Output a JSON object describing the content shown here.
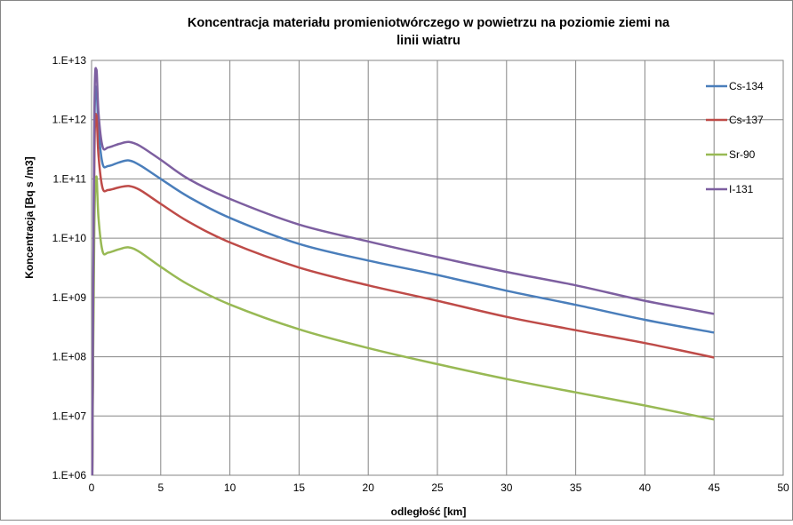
{
  "chart_data": {
    "type": "line",
    "title_line1": "Koncentracja materiału promieniotwórczego w powietrzu na poziomie ziemi na",
    "title_line2": "linii wiatru",
    "xlabel": "odległość [km]",
    "ylabel": "Koncentracja [Bq s /m3]",
    "xlim": [
      0,
      50
    ],
    "ylim": [
      1000000,
      10000000000000
    ],
    "y_scale": "log",
    "x_ticks": [
      0,
      5,
      10,
      15,
      20,
      25,
      30,
      35,
      40,
      45,
      50
    ],
    "x_tick_labels": [
      "0",
      "5",
      "10",
      "15",
      "20",
      "25",
      "30",
      "35",
      "40",
      "45",
      "50"
    ],
    "y_ticks": [
      1000000,
      10000000,
      100000000,
      1000000000,
      10000000000,
      100000000000,
      1000000000000,
      10000000000000
    ],
    "y_tick_labels": [
      "1.E+06",
      "1.E+07",
      "1.E+08",
      "1.E+09",
      "1.E+10",
      "1.E+11",
      "1.E+12",
      "1.E+13"
    ],
    "grid": true,
    "legend_position": "right",
    "series": [
      {
        "name": "Cs-134",
        "color": "#4a7ebb",
        "points": [
          [
            0.05,
            1000000
          ],
          [
            0.2,
            500000000000
          ],
          [
            0.35,
            3500000000000
          ],
          [
            0.5,
            700000000000
          ],
          [
            0.8,
            180000000000
          ],
          [
            1.2,
            165000000000
          ],
          [
            2.0,
            190000000000
          ],
          [
            2.7,
            205000000000
          ],
          [
            3.5,
            170000000000
          ],
          [
            5,
            100000000000
          ],
          [
            7,
            50000000000
          ],
          [
            10,
            22000000000
          ],
          [
            15,
            8000000000
          ],
          [
            20,
            4200000000
          ],
          [
            25,
            2400000000
          ],
          [
            30,
            1300000000
          ],
          [
            35,
            750000000
          ],
          [
            40,
            420000000
          ],
          [
            45,
            255000000
          ]
        ]
      },
      {
        "name": "Cs-137",
        "color": "#be4b48",
        "points": [
          [
            0.05,
            1000000
          ],
          [
            0.2,
            200000000000
          ],
          [
            0.35,
            1200000000000
          ],
          [
            0.5,
            250000000000
          ],
          [
            0.8,
            70000000000
          ],
          [
            1.2,
            65000000000
          ],
          [
            2.0,
            72000000000
          ],
          [
            2.7,
            76000000000
          ],
          [
            3.5,
            65000000000
          ],
          [
            5,
            38000000000
          ],
          [
            7,
            19000000000
          ],
          [
            10,
            8500000000
          ],
          [
            15,
            3200000000
          ],
          [
            20,
            1600000000
          ],
          [
            25,
            880000000
          ],
          [
            30,
            470000000
          ],
          [
            35,
            280000000
          ],
          [
            40,
            170000000
          ],
          [
            45,
            97000000
          ]
        ]
      },
      {
        "name": "Sr-90",
        "color": "#98b954",
        "points": [
          [
            0.05,
            1000000
          ],
          [
            0.2,
            15000000000
          ],
          [
            0.35,
            110000000000
          ],
          [
            0.5,
            22000000000
          ],
          [
            0.8,
            6000000000
          ],
          [
            1.2,
            5700000000
          ],
          [
            2.0,
            6500000000
          ],
          [
            2.7,
            7000000000
          ],
          [
            3.5,
            5800000000
          ],
          [
            5,
            3300000000
          ],
          [
            7,
            1650000000
          ],
          [
            10,
            760000000
          ],
          [
            15,
            290000000
          ],
          [
            20,
            140000000
          ],
          [
            25,
            75000000
          ],
          [
            30,
            42000000
          ],
          [
            35,
            25000000
          ],
          [
            40,
            15000000
          ],
          [
            45,
            8700000
          ]
        ]
      },
      {
        "name": "I-131",
        "color": "#7d5fa0",
        "points": [
          [
            0.05,
            1000000
          ],
          [
            0.2,
            1000000000000
          ],
          [
            0.35,
            7000000000000
          ],
          [
            0.5,
            1300000000000
          ],
          [
            0.8,
            350000000000
          ],
          [
            1.2,
            340000000000
          ],
          [
            2.0,
            390000000000
          ],
          [
            2.7,
            420000000000
          ],
          [
            3.5,
            360000000000
          ],
          [
            5,
            210000000000
          ],
          [
            7,
            100000000000
          ],
          [
            10,
            46000000000
          ],
          [
            15,
            17000000000
          ],
          [
            20,
            8800000000
          ],
          [
            25,
            4800000000
          ],
          [
            30,
            2700000000
          ],
          [
            35,
            1600000000
          ],
          [
            40,
            880000000
          ],
          [
            45,
            530000000
          ]
        ]
      }
    ]
  }
}
